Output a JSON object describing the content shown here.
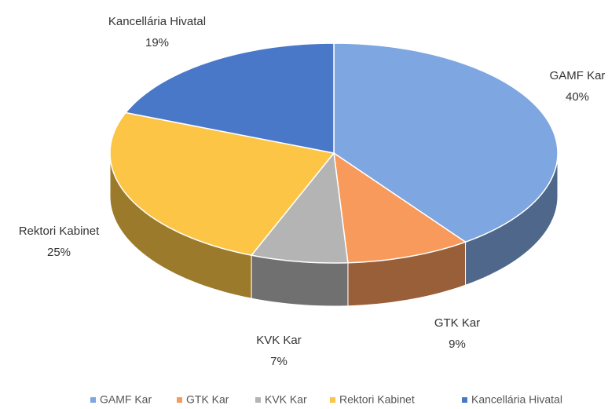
{
  "chart_data": {
    "type": "pie",
    "categories": [
      "GAMF Kar",
      "GTK Kar",
      "KVK Kar",
      "Rektori Kabinet",
      "Kancellária Hivatal"
    ],
    "values": [
      40,
      9,
      7,
      25,
      19
    ],
    "value_labels": [
      "40%",
      "9%",
      "7%",
      "25%",
      "19%"
    ],
    "colors": [
      "#7ea6e0",
      "#f79a5c",
      "#b4b4b4",
      "#fcc545",
      "#4a78c8"
    ],
    "legend": "bottom"
  }
}
